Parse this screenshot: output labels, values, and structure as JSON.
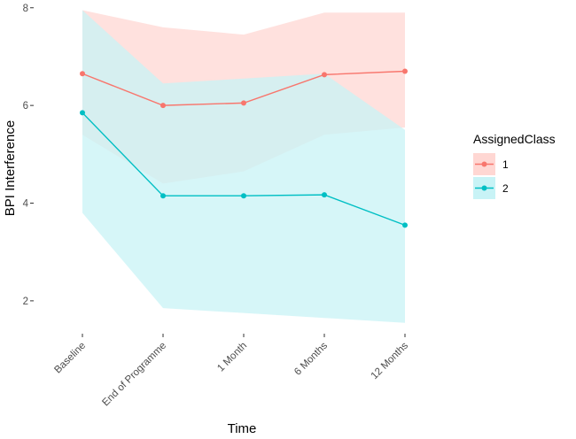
{
  "chart_data": {
    "type": "line",
    "title": "",
    "xlabel": "Time",
    "ylabel": "BPI Interference",
    "categories": [
      "Baseline",
      "End of Programme",
      "1 Month",
      "6 Months",
      "12 Months"
    ],
    "ylim": [
      1.4,
      8.05
    ],
    "yticks": [
      2,
      4,
      6,
      8
    ],
    "grid": false,
    "legend": {
      "title": "AssignedClass",
      "position": "right"
    },
    "series": [
      {
        "name": "1",
        "color": "#F8766D",
        "ribbon_color": "#FFD7D3",
        "values": [
          6.65,
          6.0,
          6.05,
          6.63,
          6.7
        ],
        "lower": [
          5.4,
          4.4,
          4.65,
          5.4,
          5.55
        ],
        "upper": [
          7.95,
          7.6,
          7.45,
          7.9,
          7.9
        ]
      },
      {
        "name": "2",
        "color": "#00BFC4",
        "ribbon_color": "#C8F3F6",
        "values": [
          5.85,
          4.15,
          4.15,
          4.17,
          3.55
        ],
        "lower": [
          3.8,
          1.85,
          1.75,
          1.65,
          1.55
        ],
        "upper": [
          7.95,
          6.45,
          6.55,
          6.65,
          5.5
        ]
      }
    ]
  }
}
